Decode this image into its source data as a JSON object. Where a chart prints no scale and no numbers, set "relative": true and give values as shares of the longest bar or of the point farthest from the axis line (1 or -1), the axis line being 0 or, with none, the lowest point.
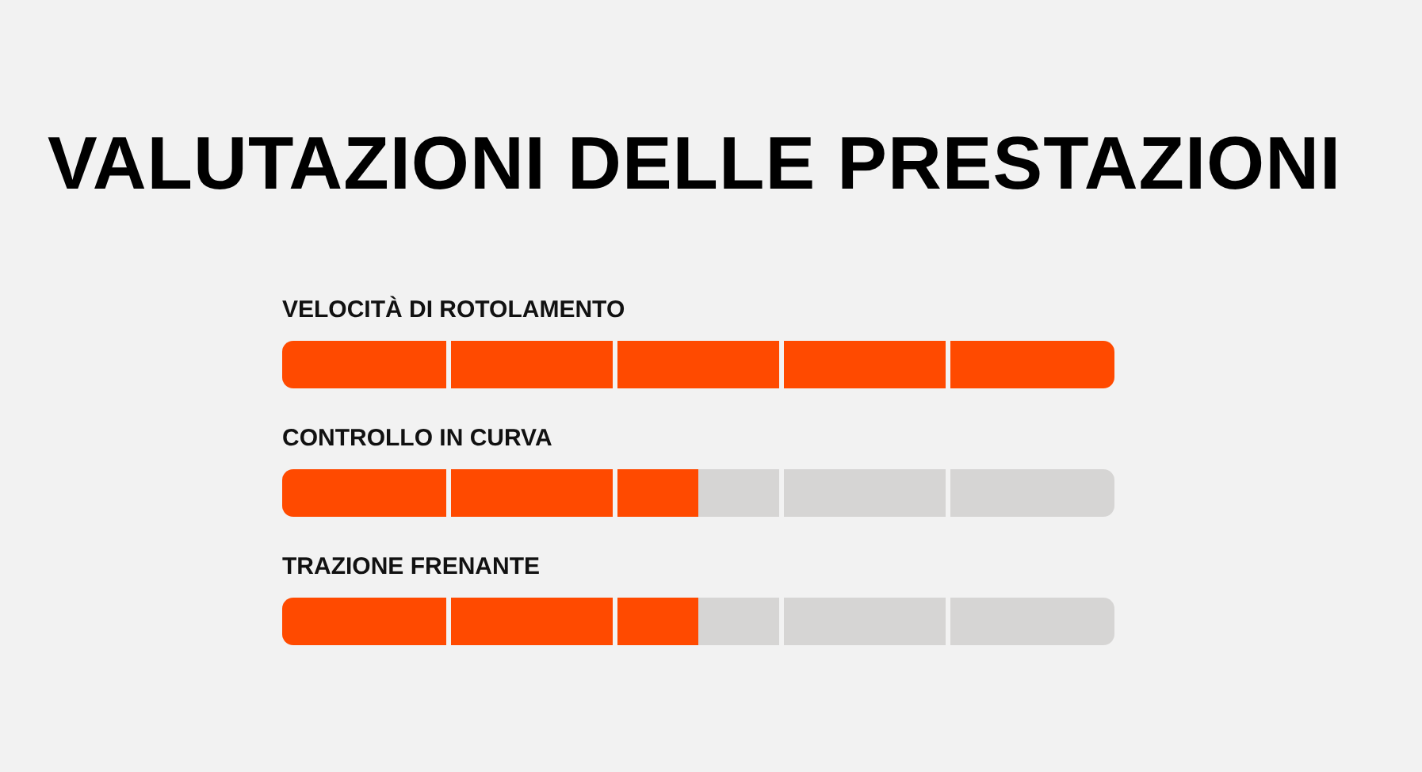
{
  "chart_data": {
    "type": "bar",
    "title": "VALUTAZIONI DELLE PRESTAZIONI",
    "orientation": "horizontal",
    "relative": true,
    "stacked": true,
    "categories": [
      "VELOCITÀ DI ROTOLAMENTO",
      "CONTROLLO IN CURVA",
      "TRAZIONE FRENANTE"
    ],
    "series": [
      {
        "color": "#ff4a00",
        "values": [
          1,
          0.5,
          0.5
        ]
      },
      {
        "color": "#d6d5d4",
        "values": [
          0,
          0.5,
          0.5
        ]
      }
    ]
  }
}
